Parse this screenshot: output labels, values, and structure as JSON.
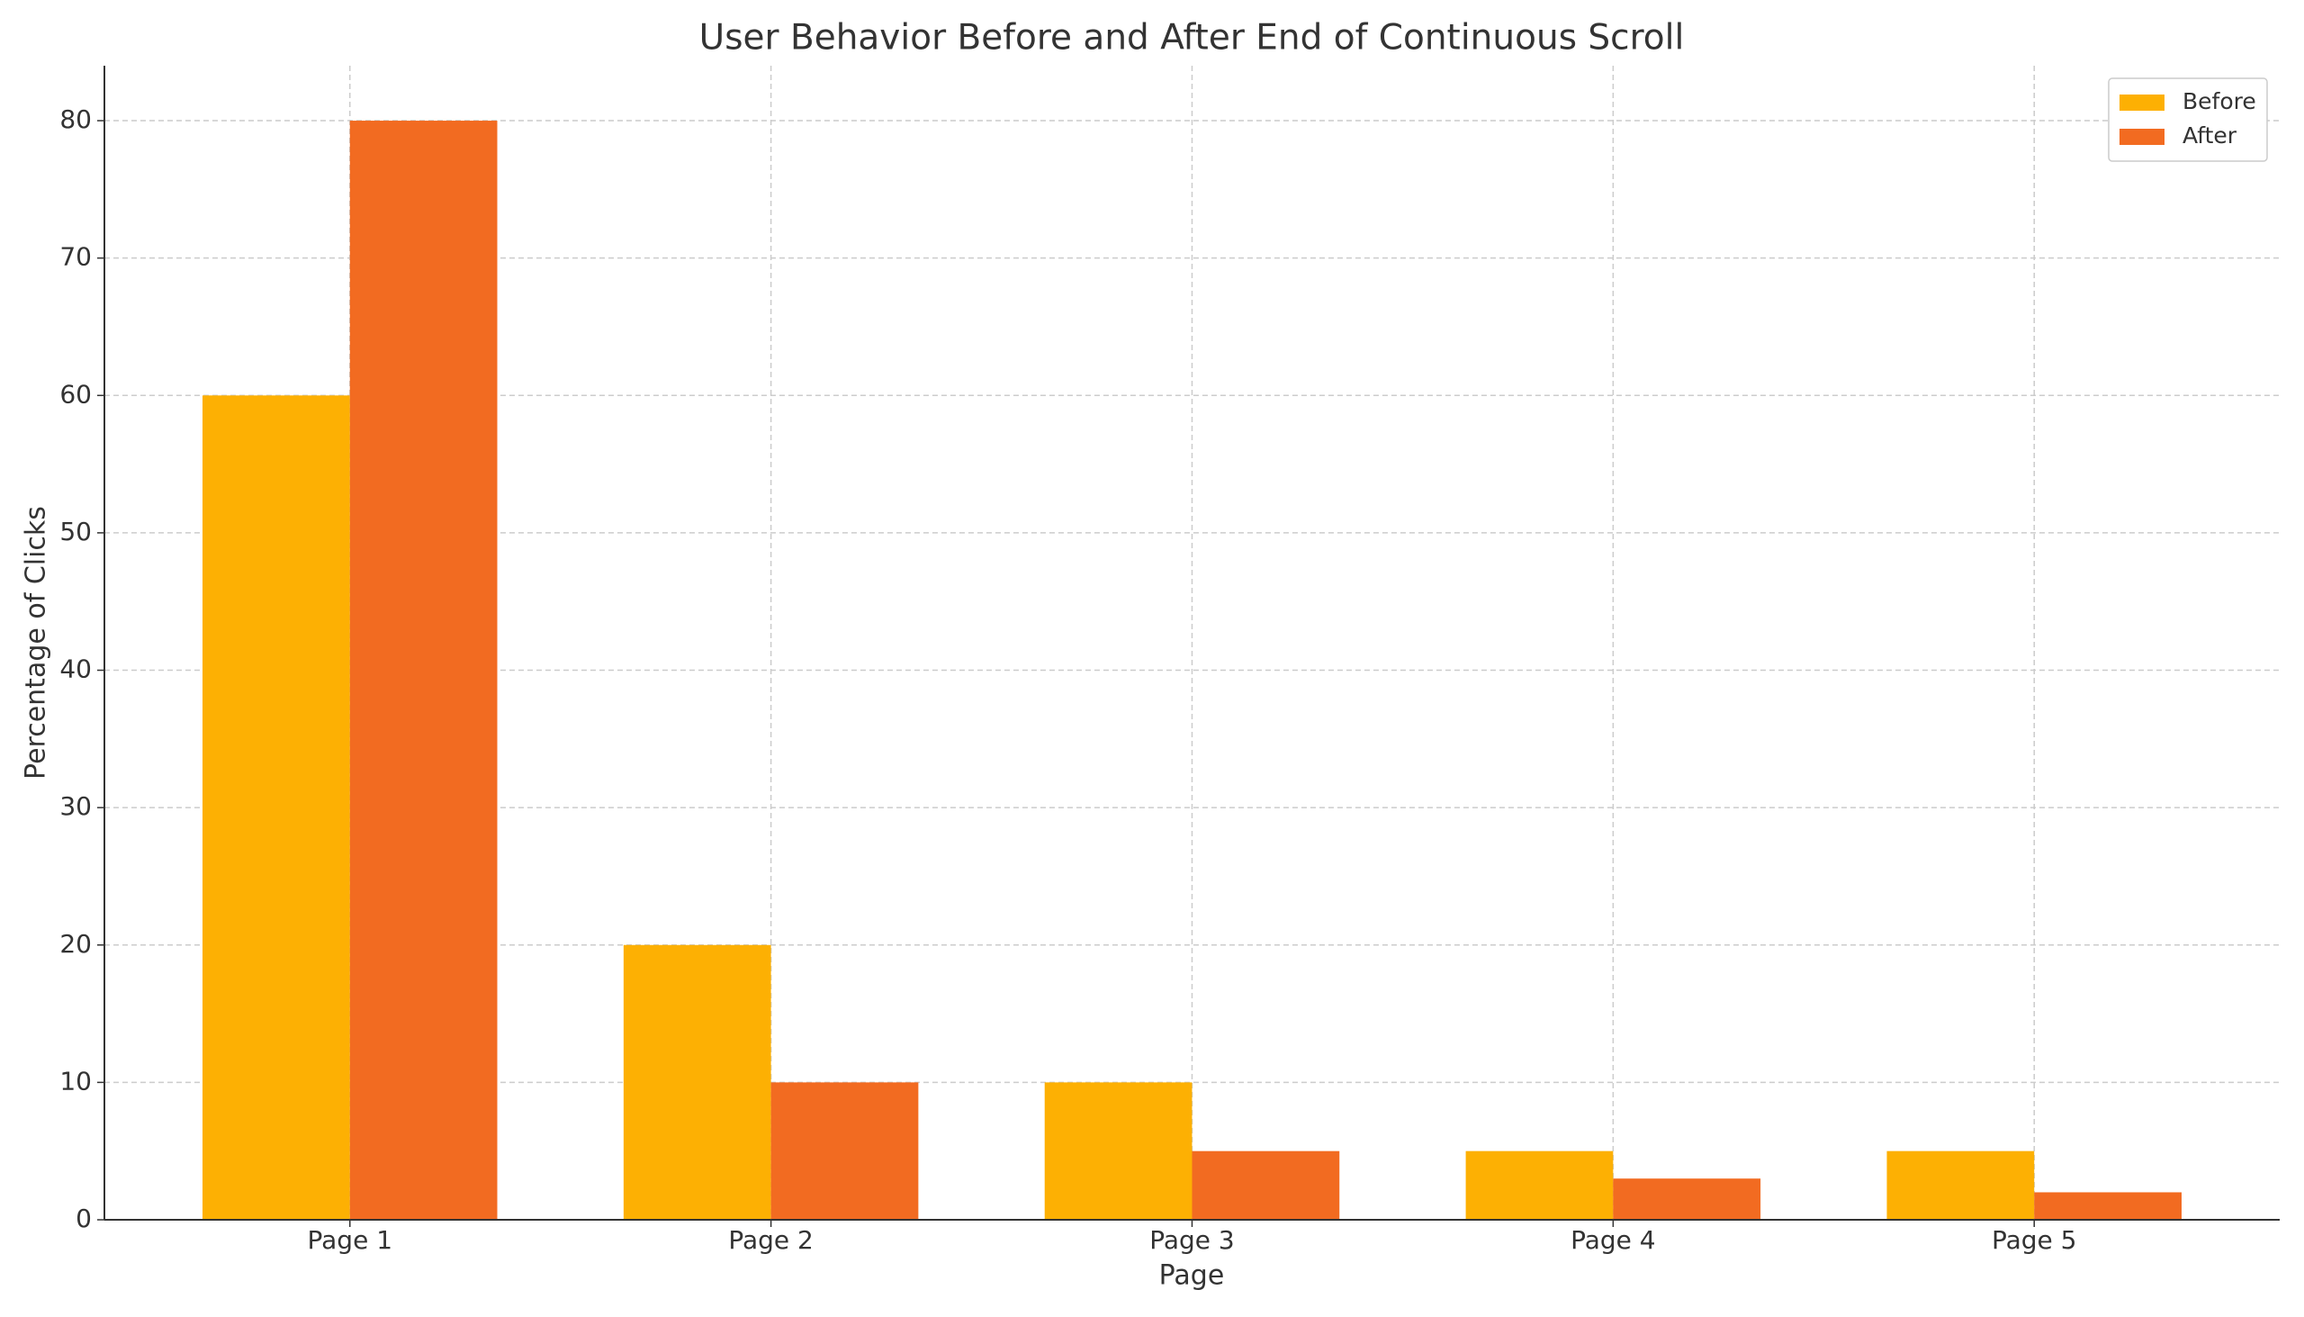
{
  "chart_data": {
    "type": "bar",
    "title": "User Behavior Before and After End of Continuous Scroll",
    "x_label": "Page",
    "y_label": "Percentage of Clicks",
    "categories": [
      "Page 1",
      "Page 2",
      "Page 3",
      "Page 4",
      "Page 5"
    ],
    "series": [
      {
        "name": "Before",
        "color": "#FDB003",
        "values": [
          60,
          20,
          10,
          5,
          5
        ]
      },
      {
        "name": "After",
        "color": "#F26B21",
        "values": [
          80,
          10,
          5,
          3,
          2
        ]
      }
    ],
    "ylim": [
      0,
      84
    ],
    "yticks": [
      0,
      10,
      20,
      30,
      40,
      50,
      60,
      70,
      80
    ],
    "grid": true,
    "legend": "upper right"
  }
}
